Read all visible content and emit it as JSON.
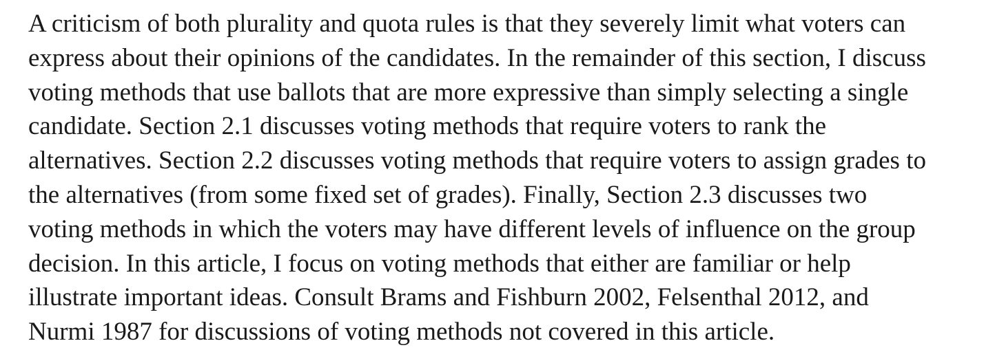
{
  "paragraph": {
    "lines": [
      "A criticism of both plurality and quota rules is that they severely limit what voters can",
      "express about their opinions of the candidates. In the remainder of this section, I discuss",
      "voting methods that use ballots that are more expressive than simply selecting a single",
      "candidate. Section 2.1 discusses voting methods that require voters to rank the",
      "alternatives. Section 2.2 discusses voting methods that require voters to assign grades to",
      "the alternatives (from some fixed set of grades). Finally, Section 2.3 discusses two",
      "voting methods in which the voters may have different levels of influence on the group",
      "decision. In this article, I focus on voting methods that either are familiar or help",
      "illustrate important ideas. Consult Brams and Fishburn 2002, Felsenthal 2012, and",
      "Nurmi 1987 for discussions of voting methods not covered in this article."
    ]
  }
}
